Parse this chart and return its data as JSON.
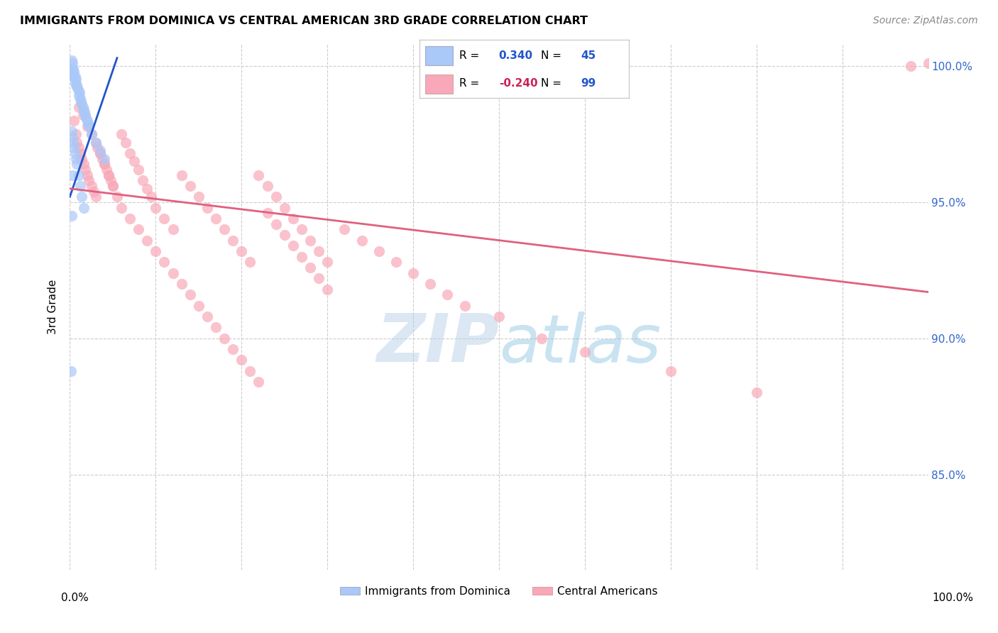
{
  "title": "IMMIGRANTS FROM DOMINICA VS CENTRAL AMERICAN 3RD GRADE CORRELATION CHART",
  "source": "Source: ZipAtlas.com",
  "ylabel": "3rd Grade",
  "xlim": [
    0.0,
    1.0
  ],
  "ylim": [
    0.815,
    1.008
  ],
  "ytick_labels": [
    "85.0%",
    "90.0%",
    "95.0%",
    "100.0%"
  ],
  "ytick_values": [
    0.85,
    0.9,
    0.95,
    1.0
  ],
  "xtick_values": [
    0.0,
    0.1,
    0.2,
    0.3,
    0.4,
    0.5,
    0.6,
    0.7,
    0.8,
    0.9,
    1.0
  ],
  "dominica_R": "0.340",
  "dominica_N": "45",
  "central_R": "-0.240",
  "central_N": "99",
  "dominica_color": "#aac8f8",
  "central_color": "#f8a8b8",
  "dominica_line_color": "#2255cc",
  "central_line_color": "#e06080",
  "watermark": "ZIPatlas",
  "dominica_line_x": [
    0.0,
    0.055
  ],
  "dominica_line_y": [
    0.952,
    1.003
  ],
  "central_line_x": [
    0.0,
    1.0
  ],
  "central_line_y": [
    0.955,
    0.917
  ],
  "dominica_points_x": [
    0.002,
    0.003,
    0.003,
    0.004,
    0.004,
    0.005,
    0.005,
    0.006,
    0.006,
    0.007,
    0.007,
    0.008,
    0.009,
    0.01,
    0.01,
    0.011,
    0.012,
    0.013,
    0.014,
    0.015,
    0.016,
    0.017,
    0.018,
    0.019,
    0.02,
    0.021,
    0.022,
    0.025,
    0.03,
    0.035,
    0.04,
    0.002,
    0.003,
    0.004,
    0.005,
    0.006,
    0.007,
    0.008,
    0.01,
    0.012,
    0.014,
    0.016,
    0.003,
    0.002,
    0.001
  ],
  "dominica_points_y": [
    1.002,
    1.001,
    0.998,
    0.999,
    0.997,
    0.998,
    0.996,
    0.996,
    0.994,
    0.995,
    0.993,
    0.993,
    0.992,
    0.991,
    0.989,
    0.99,
    0.988,
    0.987,
    0.986,
    0.985,
    0.984,
    0.983,
    0.982,
    0.981,
    0.98,
    0.979,
    0.978,
    0.975,
    0.972,
    0.969,
    0.966,
    0.976,
    0.974,
    0.972,
    0.97,
    0.968,
    0.966,
    0.964,
    0.96,
    0.956,
    0.952,
    0.948,
    0.96,
    0.945,
    0.888
  ],
  "central_points_x": [
    0.005,
    0.007,
    0.008,
    0.01,
    0.012,
    0.014,
    0.016,
    0.018,
    0.02,
    0.022,
    0.025,
    0.028,
    0.03,
    0.032,
    0.035,
    0.038,
    0.04,
    0.043,
    0.045,
    0.048,
    0.05,
    0.055,
    0.06,
    0.065,
    0.07,
    0.075,
    0.08,
    0.085,
    0.09,
    0.095,
    0.1,
    0.11,
    0.12,
    0.13,
    0.14,
    0.15,
    0.16,
    0.17,
    0.18,
    0.19,
    0.2,
    0.21,
    0.22,
    0.23,
    0.24,
    0.25,
    0.26,
    0.27,
    0.28,
    0.29,
    0.3,
    0.01,
    0.015,
    0.02,
    0.025,
    0.03,
    0.035,
    0.04,
    0.045,
    0.05,
    0.06,
    0.07,
    0.08,
    0.09,
    0.1,
    0.11,
    0.12,
    0.13,
    0.14,
    0.15,
    0.16,
    0.17,
    0.18,
    0.19,
    0.2,
    0.21,
    0.22,
    0.23,
    0.24,
    0.25,
    0.26,
    0.27,
    0.28,
    0.29,
    0.3,
    0.32,
    0.34,
    0.36,
    0.38,
    0.4,
    0.42,
    0.44,
    0.46,
    0.5,
    0.55,
    0.6,
    0.7,
    0.8,
    0.98,
    1.0
  ],
  "central_points_y": [
    0.98,
    0.975,
    0.972,
    0.97,
    0.968,
    0.966,
    0.964,
    0.962,
    0.96,
    0.958,
    0.956,
    0.954,
    0.952,
    0.97,
    0.968,
    0.966,
    0.964,
    0.962,
    0.96,
    0.958,
    0.956,
    0.952,
    0.975,
    0.972,
    0.968,
    0.965,
    0.962,
    0.958,
    0.955,
    0.952,
    0.948,
    0.944,
    0.94,
    0.96,
    0.956,
    0.952,
    0.948,
    0.944,
    0.94,
    0.936,
    0.932,
    0.928,
    0.96,
    0.956,
    0.952,
    0.948,
    0.944,
    0.94,
    0.936,
    0.932,
    0.928,
    0.985,
    0.982,
    0.978,
    0.975,
    0.972,
    0.968,
    0.964,
    0.96,
    0.956,
    0.948,
    0.944,
    0.94,
    0.936,
    0.932,
    0.928,
    0.924,
    0.92,
    0.916,
    0.912,
    0.908,
    0.904,
    0.9,
    0.896,
    0.892,
    0.888,
    0.884,
    0.946,
    0.942,
    0.938,
    0.934,
    0.93,
    0.926,
    0.922,
    0.918,
    0.94,
    0.936,
    0.932,
    0.928,
    0.924,
    0.92,
    0.916,
    0.912,
    0.908,
    0.9,
    0.895,
    0.888,
    0.88,
    1.0,
    1.001
  ]
}
